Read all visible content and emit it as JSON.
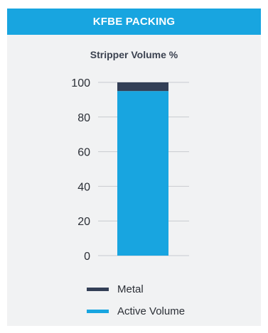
{
  "header": {
    "title": "KFBE PACKING"
  },
  "chart_data": {
    "type": "bar",
    "stacked": true,
    "title": "Stripper Volume %",
    "xlabel": "",
    "ylabel": "",
    "ylim": [
      0,
      100
    ],
    "yticks": [
      0,
      20,
      40,
      60,
      80,
      100
    ],
    "grid": true,
    "legend_position": "bottom",
    "categories": [
      ""
    ],
    "series": [
      {
        "name": "Active Volume",
        "values": [
          95
        ],
        "color": "#18a5e0"
      },
      {
        "name": "Metal",
        "values": [
          5
        ],
        "color": "#333f56"
      }
    ]
  },
  "legend": [
    {
      "label": "Metal",
      "color": "#333f56"
    },
    {
      "label": "Active Volume",
      "color": "#18a5e0"
    }
  ]
}
